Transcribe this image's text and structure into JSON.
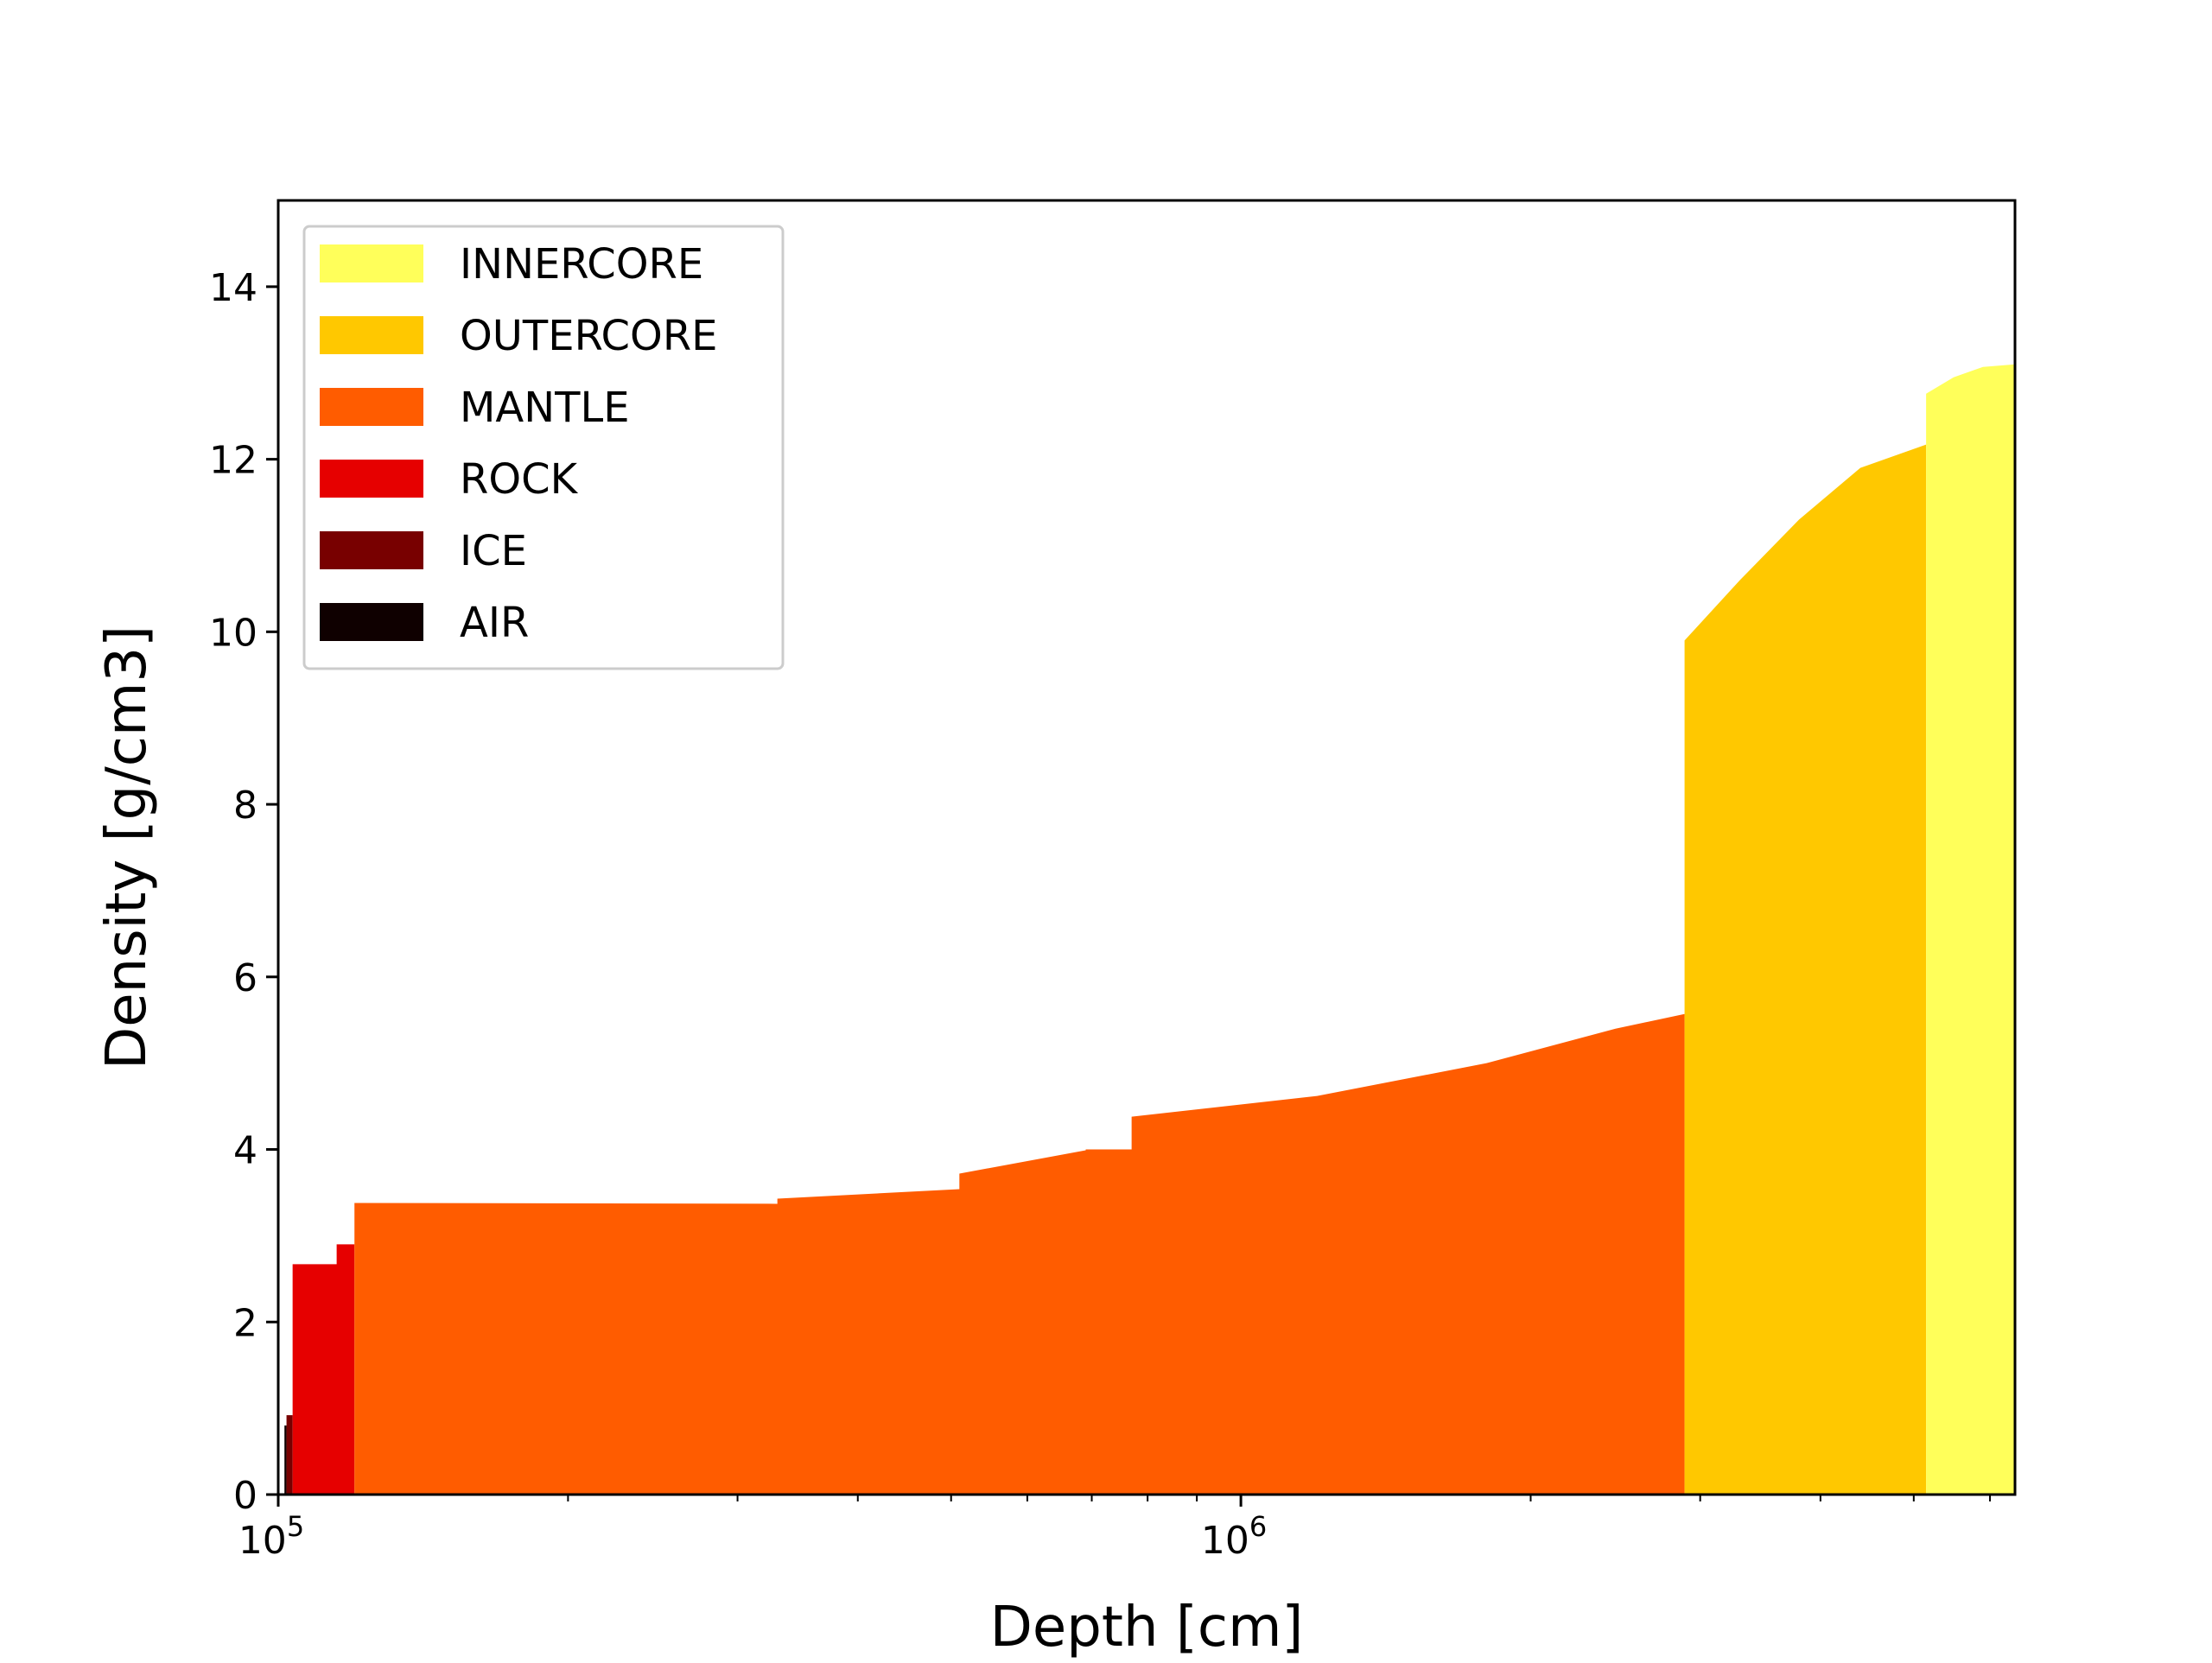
{
  "chart_data": {
    "type": "area",
    "title": "",
    "xlabel": "Depth [cm]",
    "ylabel": "Density [g/cm3]",
    "xscale": "log",
    "xlim": [
      100000,
      6370000
    ],
    "ylim": [
      0,
      15
    ],
    "yticks": [
      0,
      2,
      4,
      6,
      8,
      10,
      12,
      14
    ],
    "xticks_major": [
      {
        "value": 100000,
        "base": "10",
        "exp": "5"
      },
      {
        "value": 1000000,
        "base": "10",
        "exp": "6"
      }
    ],
    "grid": false,
    "legend_position": "upper-left",
    "legend": [
      {
        "label": "INNERCORE",
        "color": "#ffff5a"
      },
      {
        "label": "OUTERCORE",
        "color": "#ffc800"
      },
      {
        "label": "MANTLE",
        "color": "#ff5c00"
      },
      {
        "label": "ROCK",
        "color": "#e60000"
      },
      {
        "label": "ICE",
        "color": "#780000"
      },
      {
        "label": "AIR",
        "color": "#0f0000"
      }
    ],
    "series": [
      {
        "name": "AIR",
        "color": "#0f0000",
        "points": [
          [
            101500,
            0.8
          ],
          [
            102000,
            0.8
          ]
        ]
      },
      {
        "name": "ICE",
        "color": "#780000",
        "points": [
          [
            102000,
            0.92
          ],
          [
            103500,
            0.92
          ]
        ]
      },
      {
        "name": "ROCK",
        "color": "#e60000",
        "points": [
          [
            103500,
            2.67
          ],
          [
            115000,
            2.67
          ],
          [
            115000,
            2.9
          ],
          [
            120000,
            2.9
          ]
        ]
      },
      {
        "name": "MANTLE",
        "color": "#ff5c00",
        "points": [
          [
            120000,
            3.38
          ],
          [
            330000,
            3.37
          ],
          [
            330000,
            3.43
          ],
          [
            510000,
            3.54
          ],
          [
            510000,
            3.72
          ],
          [
            690000,
            3.99
          ],
          [
            690000,
            4.0
          ],
          [
            770000,
            4.0
          ],
          [
            770000,
            4.38
          ],
          [
            1200000,
            4.62
          ],
          [
            1800000,
            5.0
          ],
          [
            2450000,
            5.4
          ],
          [
            2890000,
            5.57
          ]
        ]
      },
      {
        "name": "OUTERCORE",
        "color": "#ffc800",
        "points": [
          [
            2890000,
            9.9
          ],
          [
            3300000,
            10.6
          ],
          [
            3800000,
            11.3
          ],
          [
            4400000,
            11.9
          ],
          [
            5150000,
            12.17
          ]
        ]
      },
      {
        "name": "INNERCORE",
        "color": "#ffff5a",
        "points": [
          [
            5150000,
            12.76
          ],
          [
            5500000,
            12.95
          ],
          [
            5900000,
            13.07
          ],
          [
            6370000,
            13.1
          ]
        ]
      }
    ]
  }
}
